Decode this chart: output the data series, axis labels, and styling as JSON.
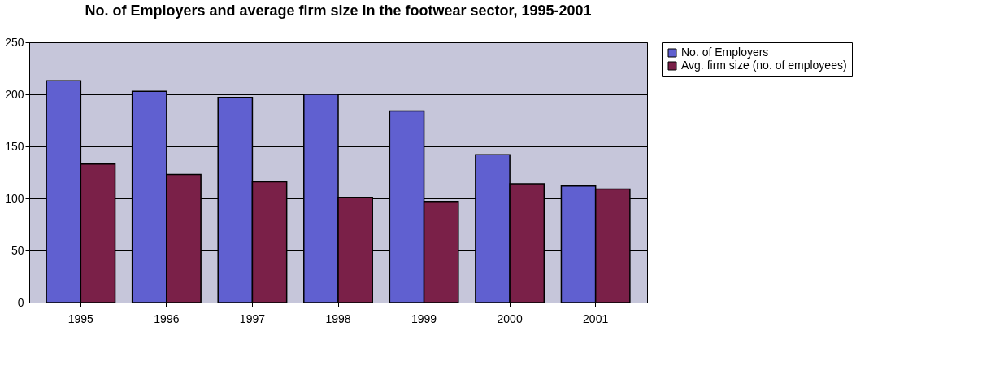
{
  "chart_data": {
    "type": "bar",
    "title": "No. of Employers and average firm size in the footwear sector, 1995-2001",
    "categories": [
      "1995",
      "1996",
      "1997",
      "1998",
      "1999",
      "2000",
      "2001"
    ],
    "series": [
      {
        "name": "No. of Employers",
        "color": "#6060d0",
        "values": [
          213,
          203,
          197,
          200,
          184,
          142,
          112
        ]
      },
      {
        "name": "Avg. firm size (no. of employees)",
        "color": "#7a2048",
        "values": [
          133,
          123,
          116,
          101,
          97,
          114,
          109
        ]
      }
    ],
    "ylim": [
      0,
      250
    ],
    "yticks": [
      0,
      50,
      100,
      150,
      200,
      250
    ],
    "grid": "y",
    "legend": "right"
  }
}
